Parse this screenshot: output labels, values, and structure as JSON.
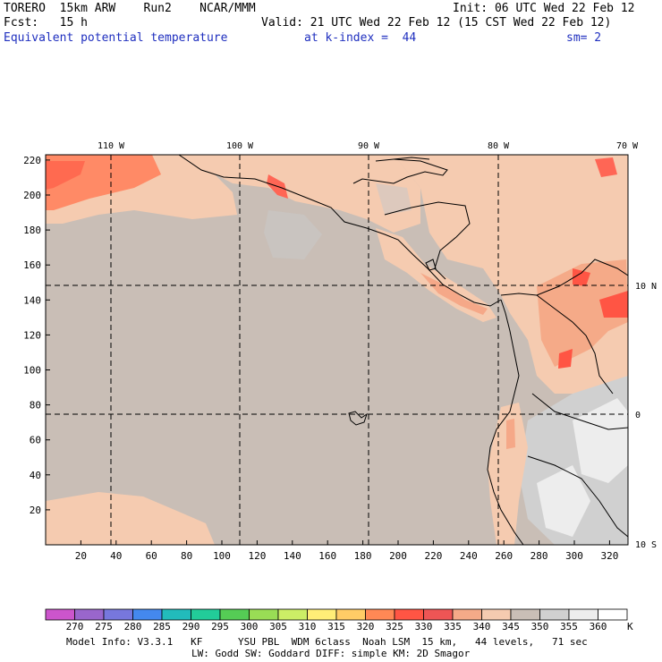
{
  "header": {
    "model_name": "TORERO  15km ARW    Run2    NCAR/MMM",
    "init_time": "Init: 06 UTC Wed 22 Feb 12",
    "forecast": "Fcst:   15 h",
    "valid_time": "Valid: 21 UTC Wed 22 Feb 12 (15 CST Wed 22 Feb 12)",
    "field_name": "Equivalent potential temperature",
    "level": "at k-index =  44",
    "smoothing": "sm= 2"
  },
  "map": {
    "lon_labels": [
      "110 W",
      "100 W",
      "90 W",
      "80 W",
      "70 W"
    ],
    "lat_labels": [
      "10 N",
      "0",
      "10 S"
    ],
    "x_ticks": [
      "20",
      "40",
      "60",
      "80",
      "100",
      "120",
      "140",
      "160",
      "180",
      "200",
      "220",
      "240",
      "260",
      "280",
      "300",
      "320"
    ],
    "y_ticks": [
      "20",
      "40",
      "60",
      "80",
      "100",
      "120",
      "140",
      "160",
      "180",
      "200",
      "220"
    ],
    "land_outline_color": "#000000",
    "background_fill_color": "#c9beb6"
  },
  "colorbar": {
    "values": [
      "270",
      "275",
      "280",
      "285",
      "290",
      "295",
      "300",
      "305",
      "310",
      "315",
      "320",
      "325",
      "330",
      "335",
      "340",
      "345",
      "350",
      "355",
      "360"
    ],
    "unit": "K",
    "colors": [
      "#cc55cc",
      "#9966cc",
      "#7777dd",
      "#4488ee",
      "#22bbbb",
      "#22cc99",
      "#55cc55",
      "#99dd55",
      "#ccee66",
      "#ffee77",
      "#ffcc66",
      "#ff8855",
      "#ff5544",
      "#ee5555",
      "#f5aa88",
      "#f5cbb0",
      "#c9beb6",
      "#d0d0d0",
      "#ededed",
      "#ffffff"
    ]
  },
  "footer": {
    "line1": "Model Info: V3.3.1   KF      YSU PBL  WDM 6class  Noah LSM  15 km,   44 levels,   71 sec",
    "line2": "LW: Godd SW: Goddard DIFF: simple KM: 2D Smagor"
  }
}
